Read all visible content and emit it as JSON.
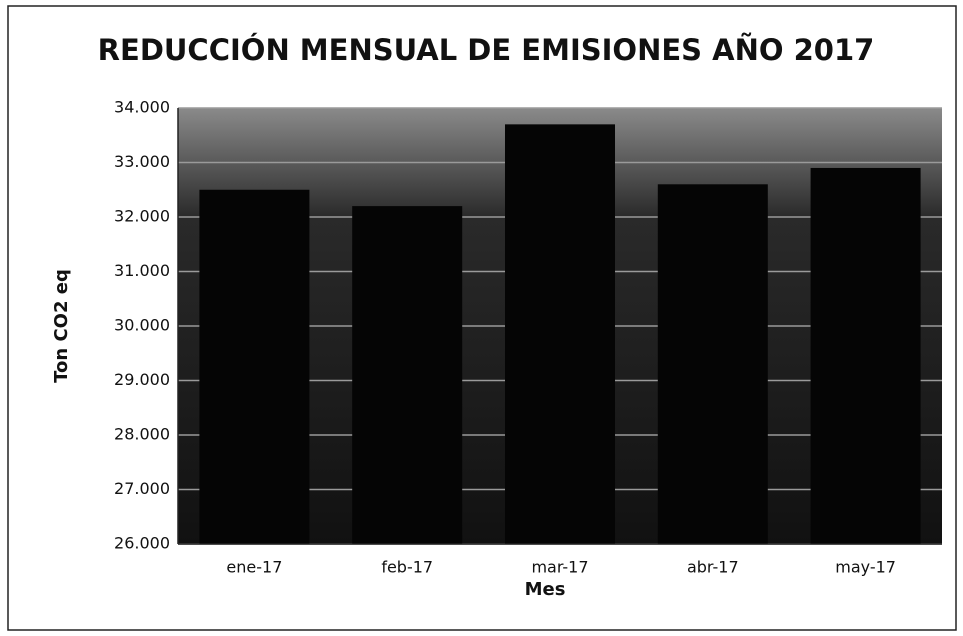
{
  "chart_data": {
    "type": "bar",
    "title": "REDUCCIÓN MENSUAL DE EMISIONES AÑO 2017",
    "x_label": "Mes",
    "y_label": "Ton CO2 eq",
    "categories": [
      "ene-17",
      "feb-17",
      "mar-17",
      "abr-17",
      "may-17"
    ],
    "values": [
      32500,
      32200,
      33700,
      32600,
      32900
    ],
    "color": "#050505",
    "ylim": [
      26000,
      34000
    ],
    "yticks": [
      {
        "value": 26000,
        "label": "26.000"
      },
      {
        "value": 27000,
        "label": "27.000"
      },
      {
        "value": 28000,
        "label": "28.000"
      },
      {
        "value": 29000,
        "label": "29.000"
      },
      {
        "value": 30000,
        "label": "30.000"
      },
      {
        "value": 31000,
        "label": "31.000"
      },
      {
        "value": 32000,
        "label": "32.000"
      },
      {
        "value": 33000,
        "label": "33.000"
      },
      {
        "value": 34000,
        "label": "34.000"
      }
    ],
    "grid": true
  }
}
